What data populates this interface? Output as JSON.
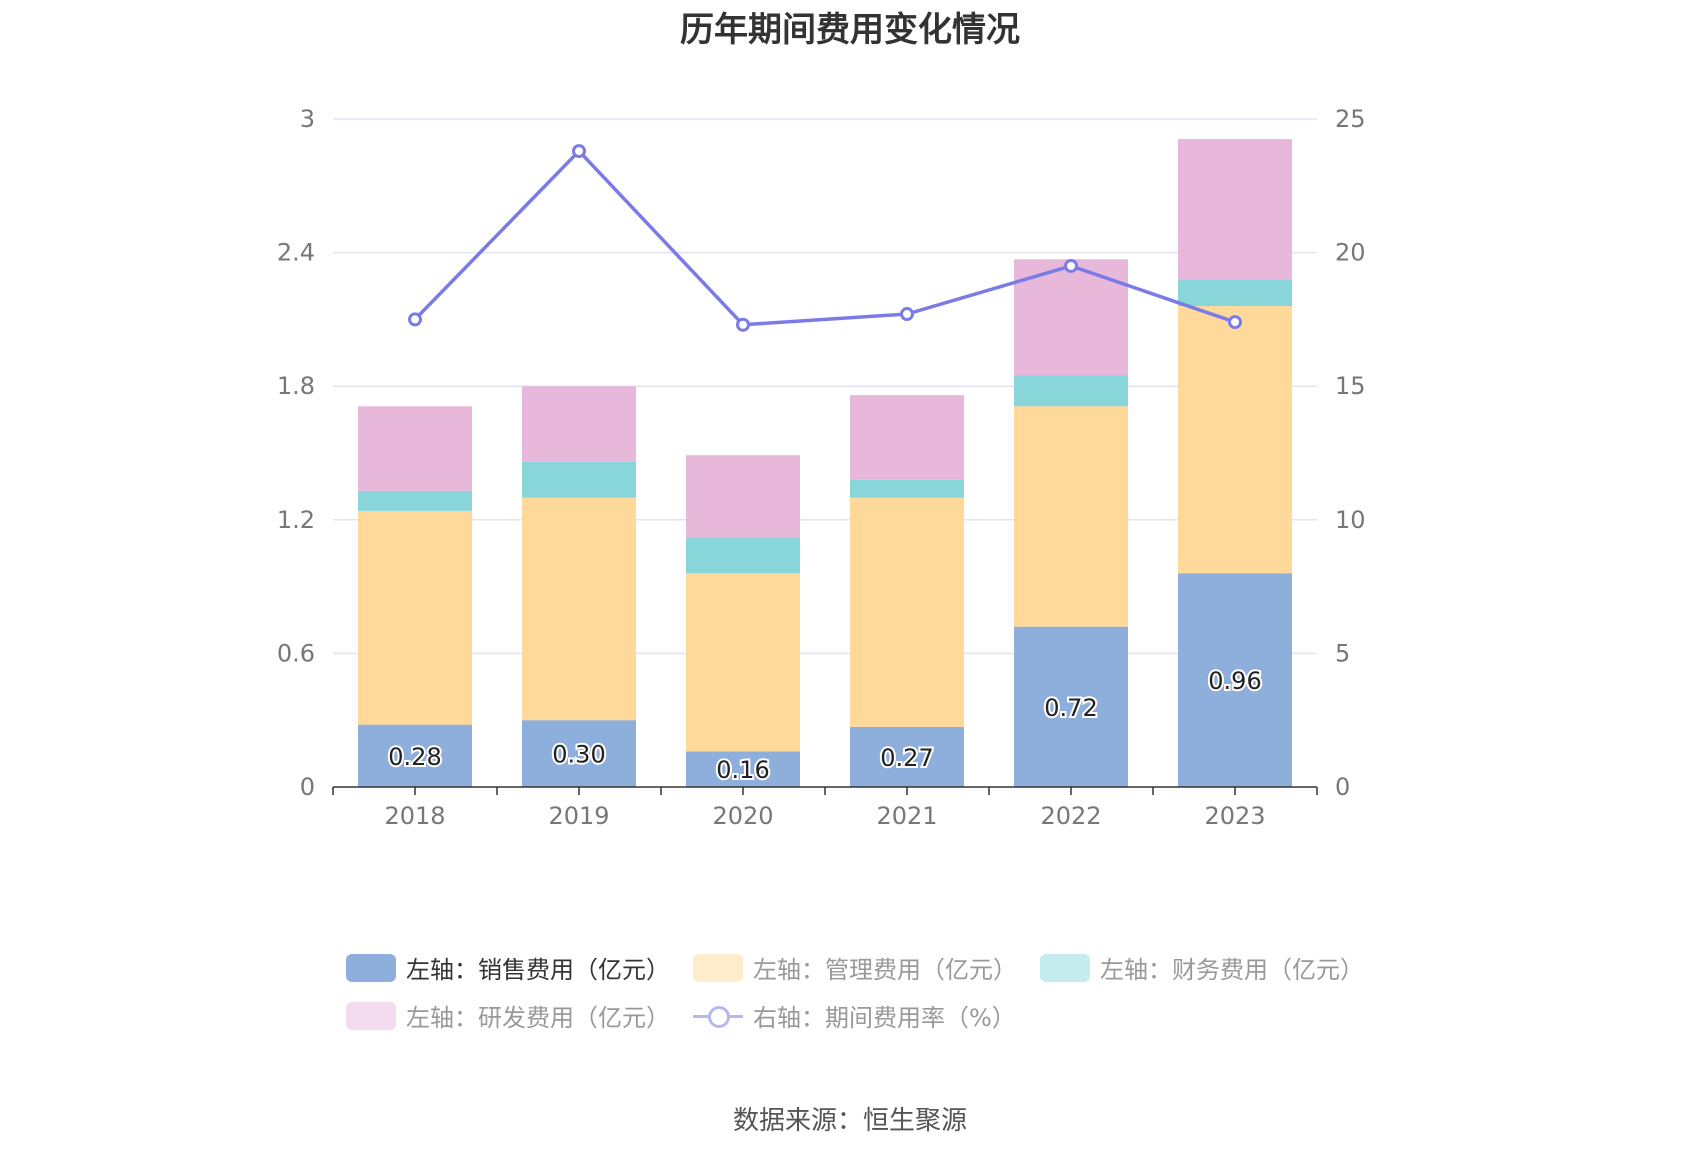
{
  "title": "历年期间费用变化情况",
  "source": "数据来源：恒生聚源",
  "chart_data": {
    "type": "bar",
    "stacked": true,
    "categories": [
      "2018",
      "2019",
      "2020",
      "2021",
      "2022",
      "2023"
    ],
    "left_axis": {
      "min": 0,
      "max": 3,
      "ticks": [
        "0",
        "0.6",
        "1.2",
        "1.8",
        "2.4",
        "3"
      ]
    },
    "right_axis": {
      "min": 0,
      "max": 25,
      "ticks": [
        "0",
        "5",
        "10",
        "15",
        "20",
        "25"
      ]
    },
    "grid": true,
    "legend_position": "bottom",
    "series": [
      {
        "name": "左轴：销售费用（亿元）",
        "axis": "left",
        "type": "bar",
        "color": "#8eaedb",
        "values": [
          0.28,
          0.3,
          0.16,
          0.27,
          0.72,
          0.96
        ],
        "labels": [
          "0.28",
          "0.30",
          "0.16",
          "0.27",
          "0.72",
          "0.96"
        ]
      },
      {
        "name": "左轴：管理费用（亿元）",
        "axis": "left",
        "type": "bar",
        "color": "#ffd999",
        "values": [
          0.96,
          1.0,
          0.8,
          1.03,
          0.99,
          1.2
        ]
      },
      {
        "name": "左轴：财务费用（亿元）",
        "axis": "left",
        "type": "bar",
        "color": "#88d6da",
        "values": [
          0.09,
          0.16,
          0.16,
          0.08,
          0.14,
          0.12
        ]
      },
      {
        "name": "左轴：研发费用（亿元）",
        "axis": "left",
        "type": "bar",
        "color": "#e8b8da",
        "values": [
          0.38,
          0.34,
          0.37,
          0.38,
          0.52,
          0.63
        ]
      },
      {
        "name": "右轴：期间费用率（%）",
        "axis": "right",
        "type": "line",
        "color": "#7b7be8",
        "values": [
          17.5,
          23.8,
          17.3,
          17.7,
          19.5,
          17.4
        ]
      }
    ]
  }
}
